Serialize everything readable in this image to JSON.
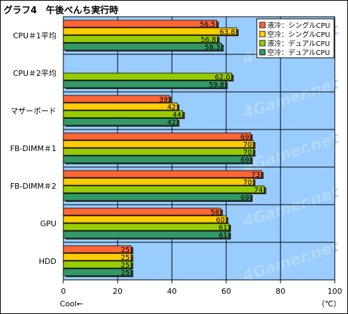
{
  "chart_data": {
    "type": "bar",
    "orientation": "horizontal",
    "title": "グラフ4　午後べんち実行時",
    "categories": [
      "CPU＃1平均",
      "CPU＃2平均",
      "マザーボード",
      "FB-DIMM＃1",
      "FB-DIMM＃2",
      "GPU",
      "HDD"
    ],
    "series": [
      {
        "name": "液冷：シングルCPU",
        "color": "#ff6633",
        "values": [
          56.5,
          null,
          39,
          69,
          73,
          58,
          25
        ]
      },
      {
        "name": "空冷：シングルCPU",
        "color": "#ffcc00",
        "values": [
          63.8,
          null,
          42,
          70,
          70,
          60,
          25
        ]
      },
      {
        "name": "液冷：デュアルCPU",
        "color": "#99cc00",
        "values": [
          56.8,
          62.0,
          44,
          70,
          74,
          61,
          25
        ]
      },
      {
        "name": "空冷：デュアルCPU",
        "color": "#339966",
        "values": [
          58.3,
          59.8,
          42,
          69,
          69,
          61,
          25
        ]
      }
    ],
    "value_labels": [
      [
        "56.5",
        "",
        "39",
        "69",
        "73",
        "58",
        "25"
      ],
      [
        "63.8",
        "",
        "42",
        "70",
        "70",
        "60",
        "25"
      ],
      [
        "56.8",
        "62.0",
        "44",
        "70",
        "74",
        "61",
        "25"
      ],
      [
        "58.3",
        "59.8",
        "42",
        "69",
        "69",
        "61",
        "25"
      ]
    ],
    "xlim": [
      0,
      100
    ],
    "xticks": [
      0,
      20,
      40,
      60,
      80,
      100
    ],
    "xlabel_left": "Cool←",
    "unit": "（℃）",
    "watermark": "4Gamer.net",
    "grid": true,
    "legend_position": "top-right",
    "plot_background": "#99ccff"
  }
}
